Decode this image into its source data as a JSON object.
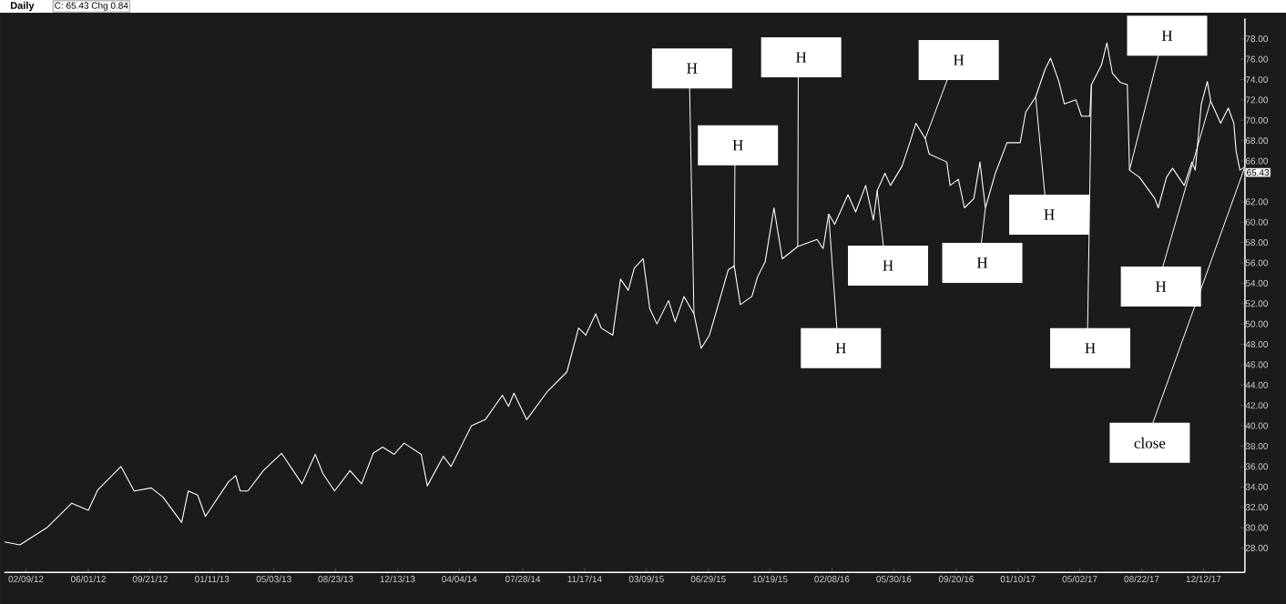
{
  "chart_data": {
    "type": "line",
    "title": "Daily",
    "subtitle": "C: 65.43 Chg 0.84",
    "x": [
      "2012-01-01",
      "2012-01-29",
      "2012-03-18",
      "2012-05-02",
      "2012-06-01",
      "2012-06-18",
      "2012-07-30",
      "2012-08-23",
      "2012-09-23",
      "2012-10-14",
      "2012-11-17",
      "2012-11-29",
      "2012-12-16",
      "2012-12-30",
      "2013-02-10",
      "2013-02-23",
      "2013-03-03",
      "2013-03-17",
      "2013-04-14",
      "2013-05-17",
      "2013-06-23",
      "2013-07-17",
      "2013-07-31",
      "2013-08-21",
      "2013-09-18",
      "2013-10-09",
      "2013-10-30",
      "2013-11-16",
      "2013-12-07",
      "2013-12-25",
      "2014-01-25",
      "2014-02-05",
      "2014-03-06",
      "2014-03-20",
      "2014-04-26",
      "2014-05-21",
      "2014-06-21",
      "2014-07-02",
      "2014-07-12",
      "2014-08-04",
      "2014-09-11",
      "2014-10-16",
      "2014-11-06",
      "2014-11-19",
      "2014-12-07",
      "2014-12-17",
      "2015-01-07",
      "2015-01-21",
      "2015-02-04",
      "2015-02-15",
      "2015-03-03",
      "2015-03-15",
      "2015-03-28",
      "2015-04-18",
      "2015-04-30",
      "2015-05-16",
      "2015-06-03",
      "2015-06-16",
      "2015-07-01",
      "2015-07-15",
      "2015-08-04",
      "2015-08-15",
      "2015-08-26",
      "2015-09-16",
      "2015-09-26",
      "2015-10-10",
      "2015-10-26",
      "2015-11-10",
      "2015-12-08",
      "2016-01-12",
      "2016-01-23",
      "2016-02-02",
      "2016-02-13",
      "2016-03-08",
      "2016-03-22",
      "2016-04-09",
      "2016-04-23",
      "2016-04-30",
      "2016-05-14",
      "2016-05-24",
      "2016-06-14",
      "2016-06-28",
      "2016-07-09",
      "2016-07-26",
      "2016-08-02",
      "2016-09-03",
      "2016-09-09",
      "2016-09-24",
      "2016-10-05",
      "2016-10-22",
      "2016-11-02",
      "2016-11-12",
      "2016-11-30",
      "2016-12-21",
      "2017-01-14",
      "2017-01-24",
      "2017-02-11",
      "2017-02-28",
      "2017-03-10",
      "2017-03-25",
      "2017-04-04",
      "2017-04-25",
      "2017-05-05",
      "2017-05-20",
      "2017-05-23",
      "2017-06-10",
      "2017-06-20",
      "2017-06-30",
      "2017-07-15",
      "2017-07-27",
      "2017-07-31",
      "2017-08-18",
      "2017-09-15",
      "2017-09-21",
      "2017-10-06",
      "2017-10-17",
      "2017-11-07",
      "2017-11-21",
      "2017-11-27",
      "2017-12-08",
      "2017-12-19",
      "2017-12-25",
      "2018-01-12",
      "2018-01-26",
      "2018-02-05",
      "2018-02-09",
      "2018-02-16",
      "2018-02-25"
    ],
    "series": [
      {
        "color": "#ffffff",
        "values": [
          28.6,
          28.3,
          30.0,
          32.4,
          31.7,
          33.7,
          36.0,
          33.6,
          33.9,
          33.0,
          30.5,
          33.6,
          33.2,
          31.1,
          34.5,
          35.1,
          33.6,
          33.6,
          35.6,
          37.3,
          34.3,
          37.2,
          35.3,
          33.6,
          35.6,
          34.3,
          37.3,
          37.9,
          37.2,
          38.3,
          37.2,
          34.1,
          37.0,
          36.0,
          40.0,
          40.6,
          43.0,
          41.9,
          43.2,
          40.6,
          43.4,
          45.3,
          49.6,
          48.9,
          51.0,
          49.6,
          48.9,
          54.4,
          53.3,
          55.5,
          56.4,
          51.5,
          50.0,
          52.3,
          50.2,
          52.7,
          51.0,
          47.6,
          48.9,
          51.5,
          55.3,
          55.7,
          51.9,
          52.7,
          54.6,
          56.1,
          61.4,
          56.4,
          57.6,
          58.3,
          57.4,
          60.8,
          59.8,
          62.7,
          61.0,
          63.6,
          60.2,
          63.1,
          64.8,
          63.6,
          65.5,
          67.8,
          69.7,
          68.2,
          66.7,
          65.9,
          63.6,
          64.2,
          61.4,
          62.3,
          65.9,
          61.4,
          64.8,
          67.8,
          67.8,
          70.8,
          72.3,
          75.0,
          76.1,
          73.8,
          71.6,
          72.0,
          70.4,
          70.4,
          73.5,
          75.4,
          77.6,
          74.6,
          73.7,
          73.5,
          65.1,
          64.4,
          62.3,
          61.4,
          64.4,
          65.3,
          63.6,
          65.9,
          65.1,
          71.6,
          73.8,
          71.9,
          69.7,
          71.2,
          69.7,
          67.0,
          65.1,
          65.43
        ]
      }
    ],
    "xlim": [
      "2012-01-01",
      "2018-02-25"
    ],
    "ylim": [
      25.6,
      80
    ],
    "xticks": [
      {
        "value": "2012-02-09",
        "label": "02/09/12"
      },
      {
        "value": "2012-06-01",
        "label": "06/01/12"
      },
      {
        "value": "2012-09-21",
        "label": "09/21/12"
      },
      {
        "value": "2013-01-11",
        "label": "01/11/13"
      },
      {
        "value": "2013-05-03",
        "label": "05/03/13"
      },
      {
        "value": "2013-08-23",
        "label": "08/23/13"
      },
      {
        "value": "2013-12-13",
        "label": "12/13/13"
      },
      {
        "value": "2014-04-04",
        "label": "04/04/14"
      },
      {
        "value": "2014-07-28",
        "label": "07/28/14"
      },
      {
        "value": "2014-11-17",
        "label": "11/17/14"
      },
      {
        "value": "2015-03-09",
        "label": "03/09/15"
      },
      {
        "value": "2015-06-29",
        "label": "06/29/15"
      },
      {
        "value": "2015-10-19",
        "label": "10/19/15"
      },
      {
        "value": "2016-02-08",
        "label": "02/08/16"
      },
      {
        "value": "2016-05-30",
        "label": "05/30/16"
      },
      {
        "value": "2016-09-20",
        "label": "09/20/16"
      },
      {
        "value": "2017-01-10",
        "label": "01/10/17"
      },
      {
        "value": "2017-05-02",
        "label": "05/02/17"
      },
      {
        "value": "2017-08-22",
        "label": "08/22/17"
      },
      {
        "value": "2017-12-12",
        "label": "12/12/17"
      }
    ],
    "yticks": [
      {
        "value": 28,
        "label": "28.00"
      },
      {
        "value": 30,
        "label": "30.00"
      },
      {
        "value": 32,
        "label": "32.00"
      },
      {
        "value": 34,
        "label": "34.00"
      },
      {
        "value": 36,
        "label": "36.00"
      },
      {
        "value": 38,
        "label": "38.00"
      },
      {
        "value": 40,
        "label": "40.00"
      },
      {
        "value": 42,
        "label": "42.00"
      },
      {
        "value": 44,
        "label": "44.00"
      },
      {
        "value": 46,
        "label": "46.00"
      },
      {
        "value": 48,
        "label": "48.00"
      },
      {
        "value": 50,
        "label": "50.00"
      },
      {
        "value": 52,
        "label": "52.00"
      },
      {
        "value": 54,
        "label": "54.00"
      },
      {
        "value": 56,
        "label": "56.00"
      },
      {
        "value": 58,
        "label": "58.00"
      },
      {
        "value": 60,
        "label": "60.00"
      },
      {
        "value": 62,
        "label": "62.00"
      },
      {
        "value": 66,
        "label": "66.00"
      },
      {
        "value": 68,
        "label": "68.00"
      },
      {
        "value": 70,
        "label": "70.00"
      },
      {
        "value": 72,
        "label": "72.00"
      },
      {
        "value": 74,
        "label": "74.00"
      },
      {
        "value": 76,
        "label": "76.00"
      },
      {
        "value": 78,
        "label": "78.00"
      }
    ],
    "annotations": [
      {
        "text": "H",
        "x": "2015-06-03",
        "y": 51.0
      },
      {
        "text": "H",
        "x": "2015-08-15",
        "y": 55.7
      },
      {
        "text": "H",
        "x": "2015-12-08",
        "y": 57.6
      },
      {
        "text": "H",
        "x": "2016-02-02",
        "y": 60.8
      },
      {
        "text": "H",
        "x": "2016-04-30",
        "y": 63.1
      },
      {
        "text": "H",
        "x": "2016-07-26",
        "y": 68.2
      },
      {
        "text": "H",
        "x": "2016-11-12",
        "y": 61.4
      },
      {
        "text": "H",
        "x": "2017-02-11",
        "y": 72.3
      },
      {
        "text": "H",
        "x": "2017-05-23",
        "y": 73.5
      },
      {
        "text": "H",
        "x": "2017-07-31",
        "y": 65.1
      },
      {
        "text": "H",
        "x": "2017-12-25",
        "y": 71.9
      },
      {
        "text": "close",
        "x": "2018-02-25",
        "y": 65.43
      },
      {
        "text": "65.43",
        "x": "2018-02-25",
        "y": 65.43
      }
    ],
    "grid": false,
    "marker": "none",
    "line_style": "solid"
  }
}
